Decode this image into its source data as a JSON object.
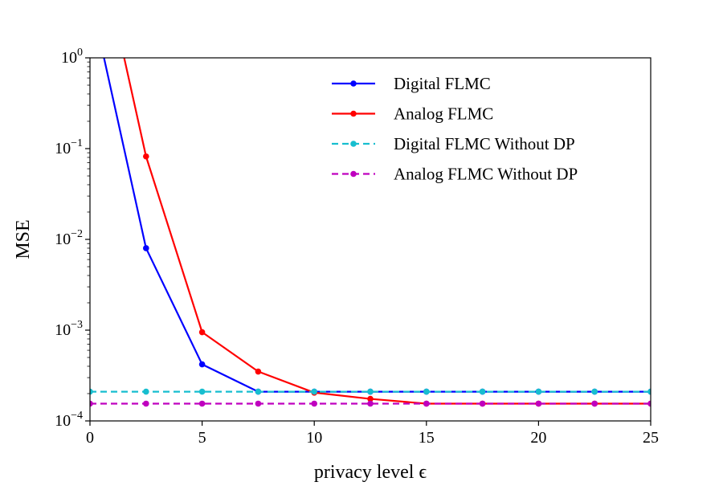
{
  "chart_data": {
    "type": "line",
    "xlabel": "privacy level ϵ",
    "ylabel": "MSE",
    "xlim": [
      0,
      25
    ],
    "ylim": [
      0.0001,
      1
    ],
    "yscale": "log",
    "grid": false,
    "legend_position": "upper-right",
    "x_ticks": [
      0,
      5,
      10,
      15,
      20,
      25
    ],
    "y_ticks": [
      {
        "value": 0.0001,
        "base": "10",
        "exp": "−4"
      },
      {
        "value": 0.001,
        "base": "10",
        "exp": "−3"
      },
      {
        "value": 0.01,
        "base": "10",
        "exp": "−2"
      },
      {
        "value": 0.1,
        "base": "10",
        "exp": "−1"
      },
      {
        "value": 1,
        "base": "10",
        "exp": "0"
      }
    ],
    "series": [
      {
        "name": "Digital FLMC",
        "color": "#0000ff",
        "style": "solid",
        "x": [
          0,
          2.5,
          5,
          7.5,
          10,
          12.5,
          15,
          17.5,
          20,
          22.5,
          25
        ],
        "y": [
          5,
          0.008,
          0.00042,
          0.00021,
          0.00021,
          0.00021,
          0.00021,
          0.00021,
          0.00021,
          0.00021,
          0.00021
        ]
      },
      {
        "name": "Analog FLMC",
        "color": "#ff0000",
        "style": "solid",
        "x": [
          0,
          2.5,
          5,
          7.5,
          10,
          12.5,
          15,
          17.5,
          20,
          22.5,
          25
        ],
        "y": [
          50,
          0.082,
          0.00095,
          0.00035,
          0.000205,
          0.000175,
          0.000155,
          0.000155,
          0.000155,
          0.000155,
          0.000155
        ]
      },
      {
        "name": "Digital FLMC Without DP",
        "color": "#17becf",
        "style": "dashed",
        "x": [
          0,
          2.5,
          5,
          7.5,
          10,
          12.5,
          15,
          17.5,
          20,
          22.5,
          25
        ],
        "y": [
          0.00021,
          0.00021,
          0.00021,
          0.00021,
          0.00021,
          0.00021,
          0.00021,
          0.00021,
          0.00021,
          0.00021,
          0.00021
        ]
      },
      {
        "name": "Analog FLMC Without DP",
        "color": "#bf00bf",
        "style": "dashed",
        "x": [
          0,
          2.5,
          5,
          7.5,
          10,
          12.5,
          15,
          17.5,
          20,
          22.5,
          25
        ],
        "y": [
          0.000155,
          0.000155,
          0.000155,
          0.000155,
          0.000155,
          0.000155,
          0.000155,
          0.000155,
          0.000155,
          0.000155,
          0.000155
        ]
      }
    ]
  }
}
